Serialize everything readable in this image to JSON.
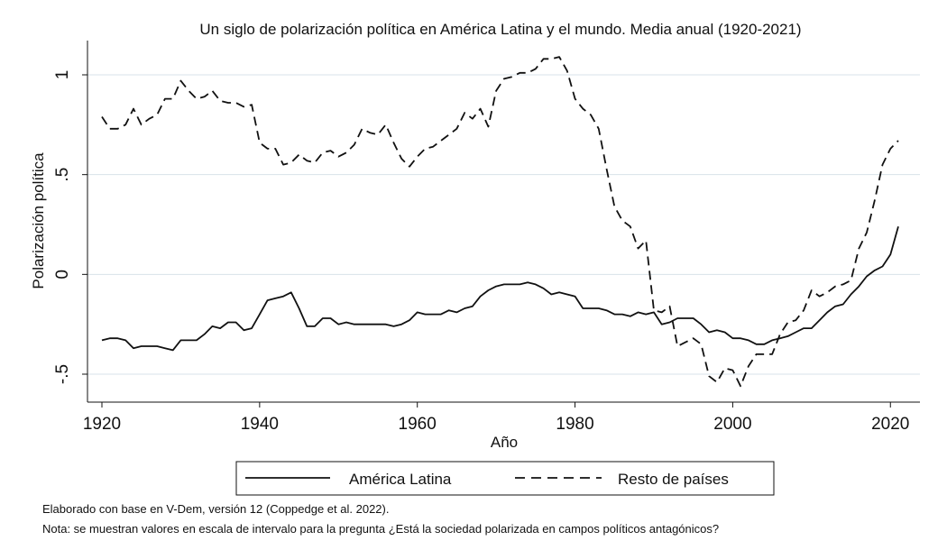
{
  "chart_data": {
    "type": "line",
    "title": "Un siglo de polarización política en América Latina y el mundo. Media anual (1920-2021)",
    "xlabel": "Año",
    "ylabel": "Polarización política",
    "xlim": [
      1920,
      2021
    ],
    "ylim": [
      -0.63,
      1.15
    ],
    "xticks": [
      1920,
      1940,
      1960,
      1980,
      2000,
      2020
    ],
    "xtick_labels": [
      "1920",
      "1940",
      "1960",
      "1980",
      "2000",
      "2020"
    ],
    "yticks": [
      -0.5,
      0,
      0.5,
      1
    ],
    "ytick_labels": [
      "-.5",
      "0",
      ".5",
      "1"
    ],
    "grid": "horizontal",
    "legend_position": "bottom",
    "series": [
      {
        "name": "América Latina",
        "style": "solid",
        "x": [
          1920,
          1921,
          1922,
          1923,
          1924,
          1925,
          1926,
          1927,
          1928,
          1929,
          1930,
          1931,
          1932,
          1933,
          1934,
          1935,
          1936,
          1937,
          1938,
          1939,
          1940,
          1941,
          1942,
          1943,
          1944,
          1945,
          1946,
          1947,
          1948,
          1949,
          1950,
          1951,
          1952,
          1953,
          1954,
          1955,
          1956,
          1957,
          1958,
          1959,
          1960,
          1961,
          1962,
          1963,
          1964,
          1965,
          1966,
          1967,
          1968,
          1969,
          1970,
          1971,
          1972,
          1973,
          1974,
          1975,
          1976,
          1977,
          1978,
          1979,
          1980,
          1981,
          1982,
          1983,
          1984,
          1985,
          1986,
          1987,
          1988,
          1989,
          1990,
          1991,
          1992,
          1993,
          1994,
          1995,
          1996,
          1997,
          1998,
          1999,
          2000,
          2001,
          2002,
          2003,
          2004,
          2005,
          2006,
          2007,
          2008,
          2009,
          2010,
          2011,
          2012,
          2013,
          2014,
          2015,
          2016,
          2017,
          2018,
          2019,
          2020,
          2021
        ],
        "values": [
          -0.33,
          -0.32,
          -0.32,
          -0.33,
          -0.37,
          -0.36,
          -0.36,
          -0.36,
          -0.37,
          -0.38,
          -0.33,
          -0.33,
          -0.33,
          -0.3,
          -0.26,
          -0.27,
          -0.24,
          -0.24,
          -0.28,
          -0.27,
          -0.2,
          -0.13,
          -0.12,
          -0.11,
          -0.09,
          -0.17,
          -0.26,
          -0.26,
          -0.22,
          -0.22,
          -0.25,
          -0.24,
          -0.25,
          -0.25,
          -0.25,
          -0.25,
          -0.25,
          -0.26,
          -0.25,
          -0.23,
          -0.19,
          -0.2,
          -0.2,
          -0.2,
          -0.18,
          -0.19,
          -0.17,
          -0.16,
          -0.11,
          -0.08,
          -0.06,
          -0.05,
          -0.05,
          -0.05,
          -0.04,
          -0.05,
          -0.07,
          -0.1,
          -0.09,
          -0.1,
          -0.11,
          -0.17,
          -0.17,
          -0.17,
          -0.18,
          -0.2,
          -0.2,
          -0.21,
          -0.19,
          -0.2,
          -0.19,
          -0.25,
          -0.24,
          -0.22,
          -0.22,
          -0.22,
          -0.25,
          -0.29,
          -0.28,
          -0.29,
          -0.32,
          -0.32,
          -0.33,
          -0.35,
          -0.35,
          -0.33,
          -0.32,
          -0.31,
          -0.29,
          -0.27,
          -0.27,
          -0.23,
          -0.19,
          -0.16,
          -0.15,
          -0.1,
          -0.06,
          -0.01,
          0.02,
          0.04,
          0.1,
          0.24
        ]
      },
      {
        "name": "Resto de países",
        "style": "dashed",
        "x": [
          1920,
          1921,
          1922,
          1923,
          1924,
          1925,
          1926,
          1927,
          1928,
          1929,
          1930,
          1931,
          1932,
          1933,
          1934,
          1935,
          1936,
          1937,
          1938,
          1939,
          1940,
          1941,
          1942,
          1943,
          1944,
          1945,
          1946,
          1947,
          1948,
          1949,
          1950,
          1951,
          1952,
          1953,
          1954,
          1955,
          1956,
          1957,
          1958,
          1959,
          1960,
          1961,
          1962,
          1963,
          1964,
          1965,
          1966,
          1967,
          1968,
          1969,
          1970,
          1971,
          1972,
          1973,
          1974,
          1975,
          1976,
          1977,
          1978,
          1979,
          1980,
          1981,
          1982,
          1983,
          1984,
          1985,
          1986,
          1987,
          1988,
          1989,
          1990,
          1991,
          1992,
          1993,
          1994,
          1995,
          1996,
          1997,
          1998,
          1999,
          2000,
          2001,
          2002,
          2003,
          2004,
          2005,
          2006,
          2007,
          2008,
          2009,
          2010,
          2011,
          2012,
          2013,
          2014,
          2015,
          2016,
          2017,
          2018,
          2019,
          2020,
          2021
        ],
        "values": [
          0.79,
          0.73,
          0.73,
          0.75,
          0.83,
          0.75,
          0.78,
          0.8,
          0.88,
          0.88,
          0.97,
          0.92,
          0.88,
          0.89,
          0.92,
          0.87,
          0.86,
          0.86,
          0.84,
          0.85,
          0.66,
          0.63,
          0.63,
          0.55,
          0.56,
          0.6,
          0.57,
          0.56,
          0.61,
          0.62,
          0.59,
          0.61,
          0.65,
          0.73,
          0.71,
          0.7,
          0.75,
          0.66,
          0.58,
          0.54,
          0.59,
          0.63,
          0.64,
          0.67,
          0.7,
          0.73,
          0.81,
          0.78,
          0.83,
          0.74,
          0.92,
          0.98,
          0.99,
          1.01,
          1.01,
          1.03,
          1.08,
          1.08,
          1.09,
          1.02,
          0.88,
          0.83,
          0.8,
          0.73,
          0.53,
          0.34,
          0.27,
          0.24,
          0.13,
          0.17,
          -0.18,
          -0.19,
          -0.16,
          -0.36,
          -0.34,
          -0.32,
          -0.35,
          -0.51,
          -0.54,
          -0.47,
          -0.48,
          -0.56,
          -0.46,
          -0.4,
          -0.4,
          -0.4,
          -0.3,
          -0.24,
          -0.23,
          -0.18,
          -0.08,
          -0.11,
          -0.09,
          -0.06,
          -0.05,
          -0.03,
          0.13,
          0.21,
          0.37,
          0.55,
          0.63,
          0.67
        ]
      }
    ]
  },
  "notes": {
    "source": "Elaborado con base en V-Dem, versión 12 (Coppedge et al. 2022).",
    "nota": "Nota: se muestran valores en escala de intervalo para la pregunta ¿Está la sociedad polarizada en campos políticos antagónicos?"
  }
}
